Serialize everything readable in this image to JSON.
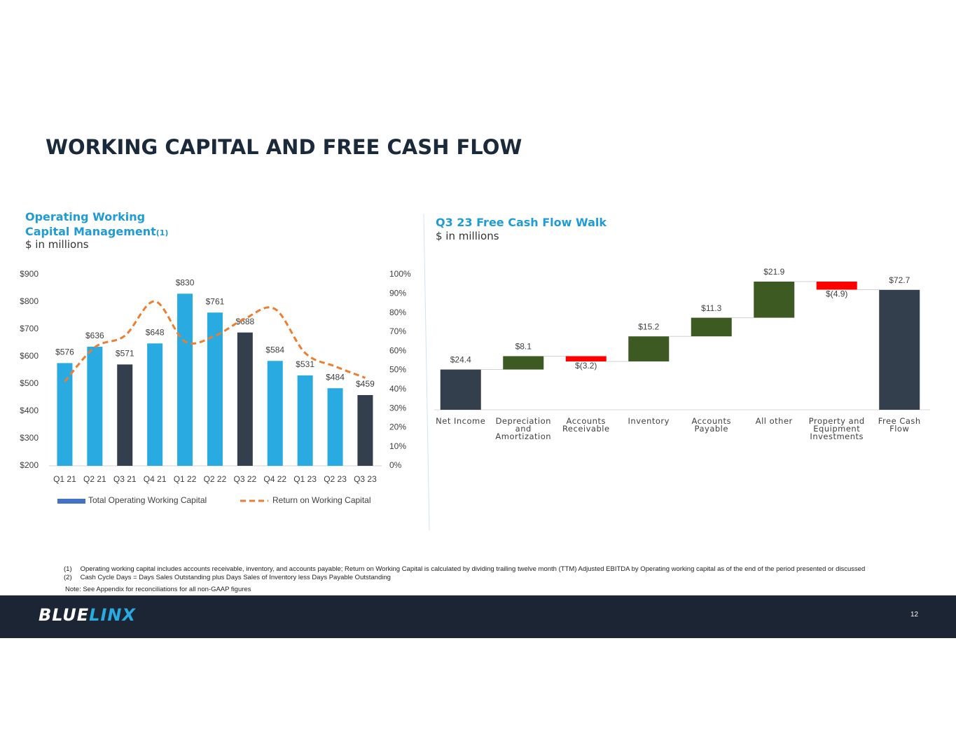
{
  "title": "WORKING CAPITAL AND FREE CASH FLOW",
  "chart_data": [
    {
      "type": "bar",
      "title": "Operating Working Capital Management",
      "title_note": "(1)",
      "subtitle": "$ in millions",
      "categories": [
        "Q1 21",
        "Q2 21",
        "Q3 21",
        "Q4 21",
        "Q1 22",
        "Q2 22",
        "Q3 22",
        "Q4 22",
        "Q1 23",
        "Q2 23",
        "Q3 23"
      ],
      "series": [
        {
          "name": "Total Operating Working Capital",
          "color": "#4472c4",
          "bar_colors": [
            "#29abe2",
            "#29abe2",
            "#333f4c",
            "#29abe2",
            "#29abe2",
            "#29abe2",
            "#333f4c",
            "#29abe2",
            "#29abe2",
            "#29abe2",
            "#333f4c"
          ],
          "values": [
            576,
            636,
            571,
            648,
            830,
            761,
            688,
            584,
            531,
            484,
            459
          ],
          "value_labels": [
            "$576",
            "$636",
            "$571",
            "$648",
            "$830",
            "$761",
            "$688",
            "$584",
            "$531",
            "$484",
            "$459"
          ]
        },
        {
          "name": "Return on Working Capital",
          "type": "line",
          "axis": "y2",
          "color": "#ed7d31",
          "dashed": true,
          "values": [
            44,
            62,
            68,
            86,
            65,
            68,
            77,
            82,
            59,
            52,
            46
          ]
        }
      ],
      "ylim": [
        200,
        900
      ],
      "yticks": [
        {
          "value": 200,
          "label": "$200"
        },
        {
          "value": 300,
          "label": "$300"
        },
        {
          "value": 400,
          "label": "$400"
        },
        {
          "value": 500,
          "label": "$500"
        },
        {
          "value": 600,
          "label": "$600"
        },
        {
          "value": 700,
          "label": "$700"
        },
        {
          "value": 800,
          "label": "$800"
        },
        {
          "value": 900,
          "label": "$900"
        }
      ],
      "y2lim": [
        0,
        100
      ],
      "y2ticks": [
        {
          "value": 0,
          "label": "0%"
        },
        {
          "value": 10,
          "label": "10%"
        },
        {
          "value": 20,
          "label": "20%"
        },
        {
          "value": 30,
          "label": "30%"
        },
        {
          "value": 40,
          "label": "40%"
        },
        {
          "value": 50,
          "label": "50%"
        },
        {
          "value": 60,
          "label": "60%"
        },
        {
          "value": 70,
          "label": "70%"
        },
        {
          "value": 80,
          "label": "80%"
        },
        {
          "value": 90,
          "label": "90%"
        },
        {
          "value": 100,
          "label": "100%"
        }
      ]
    },
    {
      "type": "waterfall",
      "title": "Q3 23 Free Cash Flow Walk",
      "subtitle": "$ in millions",
      "categories": [
        "Net Income",
        "Depreciation and Amortization",
        "Accounts Receivable",
        "Inventory",
        "Accounts Payable",
        "All other",
        "Property and Equipment Investments",
        "Free Cash Flow"
      ],
      "values": [
        24.4,
        8.1,
        -3.2,
        15.2,
        11.3,
        21.9,
        -4.9,
        72.7
      ],
      "value_labels": [
        "$24.4",
        "$8.1",
        "$(3.2)",
        "$15.2",
        "$11.3",
        "$21.9",
        "$(4.9)",
        "$72.7"
      ],
      "color_total": "#333f4c",
      "color_increase": "#3d5a22",
      "color_decrease": "#ff0000"
    }
  ],
  "footnotes": [
    {
      "marker": "(1)",
      "text": "Operating working capital includes accounts receivable, inventory, and accounts payable; Return on Working Capital is calculated by dividing trailing twelve month (TTM) Adjusted EBITDA by Operating working capital as of the end of the period presented or discussed"
    },
    {
      "marker": "(2)",
      "text": "Cash Cycle Days = Days Sales Outstanding plus Days Sales of Inventory less Days Payable Outstanding"
    }
  ],
  "note": "Note:  See Appendix for reconciliations for all non-GAAP figures",
  "footer": {
    "logo_left": "BLUE",
    "logo_right": "LINX",
    "page_number": "12"
  }
}
